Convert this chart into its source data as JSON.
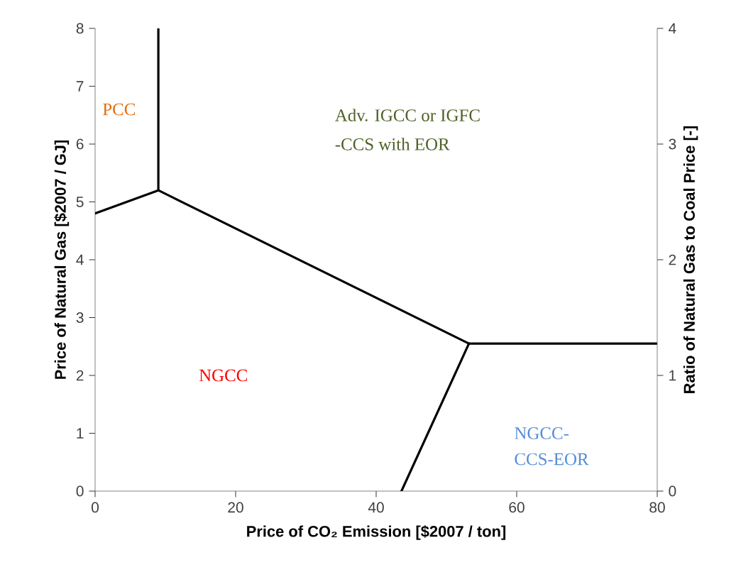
{
  "chart_data": {
    "type": "line",
    "xlabel": "Price of CO₂ Emission  [$2007 / ton]",
    "ylabel": "Price of Natural Gas  [$2007 / GJ]",
    "y2label": "Ratio of Natural Gas to Coal Price [-]",
    "xlim": [
      0,
      80
    ],
    "xticks": [
      0,
      20,
      40,
      60,
      80
    ],
    "ylim": [
      0,
      8
    ],
    "yticks": [
      0,
      1,
      2,
      3,
      4,
      5,
      6,
      7,
      8
    ],
    "y2lim": [
      0,
      4
    ],
    "y2ticks": [
      0,
      1,
      2,
      3,
      4
    ],
    "grid": false,
    "legend": false,
    "marker": "none",
    "line_style": "solid",
    "series": [
      {
        "color": "#000000",
        "x": [
          0,
          9
        ],
        "values": [
          4.8,
          5.2
        ]
      },
      {
        "color": "#000000",
        "x": [
          9,
          9
        ],
        "values": [
          5.2,
          8
        ]
      },
      {
        "color": "#000000",
        "x": [
          9,
          53.2
        ],
        "values": [
          5.2,
          2.55
        ]
      },
      {
        "color": "#000000",
        "x": [
          53.2,
          80
        ],
        "values": [
          2.55,
          2.55
        ]
      },
      {
        "color": "#000000",
        "x": [
          43.6,
          53.2
        ],
        "values": [
          0,
          2.55
        ]
      }
    ],
    "annotations": [
      "PCC",
      "Adv. IGCC or IGFC",
      "-CCS with EOR",
      "NGCC",
      "NGCC-",
      "CCS-EOR"
    ]
  }
}
